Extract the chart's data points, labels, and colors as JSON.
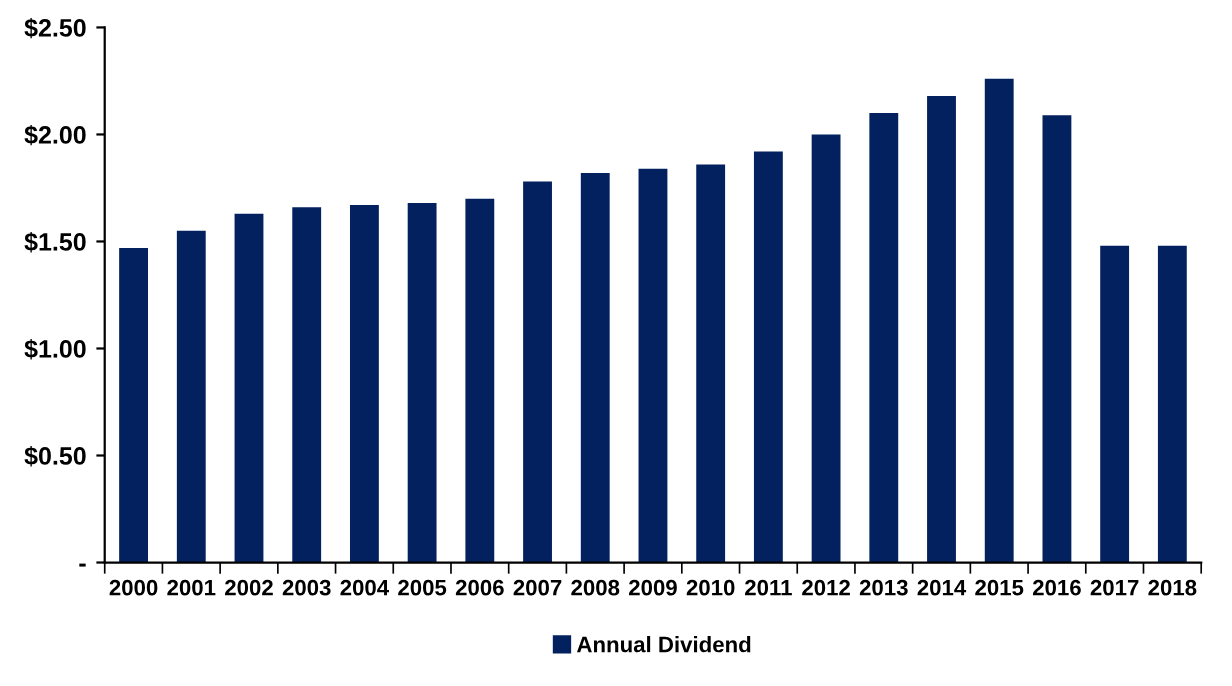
{
  "chart_data": {
    "type": "bar",
    "categories": [
      "2000",
      "2001",
      "2002",
      "2003",
      "2004",
      "2005",
      "2006",
      "2007",
      "2008",
      "2009",
      "2010",
      "2011",
      "2012",
      "2013",
      "2014",
      "2015",
      "2016",
      "2017",
      "2018"
    ],
    "series": [
      {
        "name": "Annual Dividend",
        "color": "#03215e",
        "values": [
          1.47,
          1.55,
          1.63,
          1.66,
          1.67,
          1.68,
          1.7,
          1.78,
          1.82,
          1.84,
          1.86,
          1.92,
          2.0,
          2.1,
          2.18,
          2.26,
          2.09,
          1.48,
          1.48
        ]
      }
    ],
    "ylim": [
      0,
      2.5
    ],
    "yticks": [
      {
        "value": 0,
        "label": "-"
      },
      {
        "value": 0.5,
        "label": "$0.50"
      },
      {
        "value": 1,
        "label": "$1.00"
      },
      {
        "value": 1.5,
        "label": "$1.50"
      },
      {
        "value": 2,
        "label": "$2.00"
      },
      {
        "value": 2.5,
        "label": "$2.50"
      }
    ],
    "grid": false,
    "legend": "bottom"
  }
}
